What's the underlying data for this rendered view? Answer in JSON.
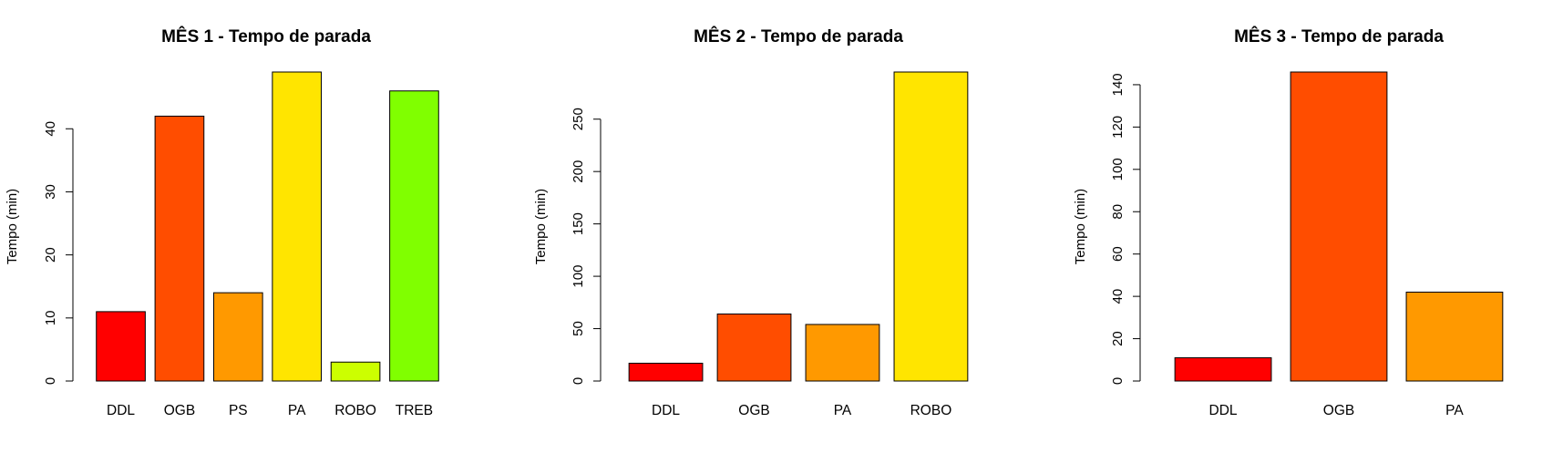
{
  "chart_data": [
    {
      "type": "bar",
      "title": "MÊS 1 - Tempo de parada",
      "ylabel": "Tempo (min)",
      "xlabel": "",
      "categories": [
        "DDL",
        "OGB",
        "PS",
        "PA",
        "ROBO",
        "TREB"
      ],
      "values": [
        11,
        42,
        14,
        49,
        3,
        46
      ],
      "colors": [
        "#FF0000",
        "#FF4D00",
        "#FF9900",
        "#FFE500",
        "#CCFF00",
        "#80FF00"
      ],
      "ylim": [
        0,
        49
      ],
      "yticks": [
        0,
        10,
        20,
        30,
        40
      ],
      "grid": false
    },
    {
      "type": "bar",
      "title": "MÊS 2 - Tempo de parada",
      "ylabel": "Tempo (min)",
      "xlabel": "",
      "categories": [
        "DDL",
        "OGB",
        "PA",
        "ROBO"
      ],
      "values": [
        17,
        64,
        54,
        295
      ],
      "colors": [
        "#FF0000",
        "#FF4D00",
        "#FF9900",
        "#FFE500"
      ],
      "ylim": [
        0,
        295
      ],
      "yticks": [
        0,
        50,
        100,
        150,
        200,
        250
      ],
      "grid": false
    },
    {
      "type": "bar",
      "title": "MÊS 3 - Tempo de parada",
      "ylabel": "Tempo (min)",
      "xlabel": "",
      "categories": [
        "DDL",
        "OGB",
        "PA"
      ],
      "values": [
        11,
        146,
        42
      ],
      "colors": [
        "#FF0000",
        "#FF4D00",
        "#FF9900"
      ],
      "ylim": [
        0,
        146
      ],
      "yticks": [
        0,
        20,
        40,
        60,
        80,
        100,
        120,
        140
      ],
      "grid": false
    }
  ]
}
